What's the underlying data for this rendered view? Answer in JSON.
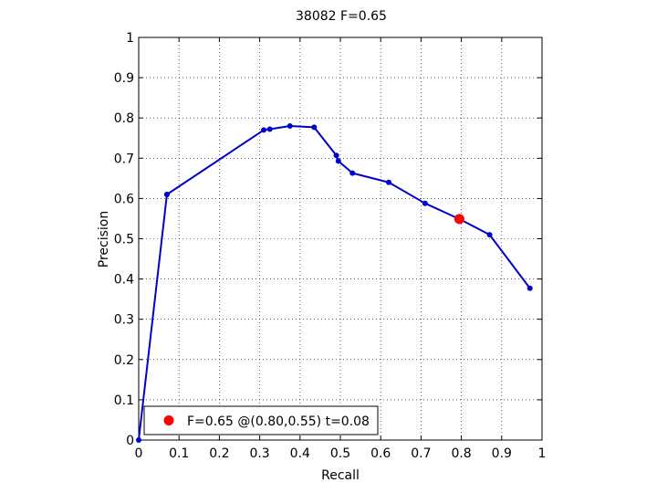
{
  "chart_data": {
    "type": "line",
    "title": "38082 F=0.65",
    "xlabel": "Recall",
    "ylabel": "Precision",
    "xlim": [
      0,
      1
    ],
    "ylim": [
      0,
      1
    ],
    "xticks": [
      "0",
      "0.1",
      "0.2",
      "0.3",
      "0.4",
      "0.5",
      "0.6",
      "0.7",
      "0.8",
      "0.9",
      "1"
    ],
    "yticks": [
      "0",
      "0.1",
      "0.2",
      "0.3",
      "0.4",
      "0.5",
      "0.6",
      "0.7",
      "0.8",
      "0.9",
      "1"
    ],
    "grid": true,
    "series": [
      {
        "color": "#0000cc",
        "x": [
          0.0,
          0.07,
          0.07,
          0.31,
          0.325,
          0.375,
          0.435,
          0.49,
          0.495,
          0.53,
          0.62,
          0.71,
          0.795,
          0.87,
          0.97
        ],
        "y": [
          0.0,
          0.61,
          0.61,
          0.77,
          0.772,
          0.78,
          0.777,
          0.707,
          0.693,
          0.663,
          0.64,
          0.588,
          0.549,
          0.51,
          0.377
        ]
      }
    ],
    "highlight": {
      "color": "#ff0000",
      "x": 0.795,
      "y": 0.549
    },
    "legend": {
      "placement": "bottom-left",
      "label": "F=0.65 @(0.80,0.55) t=0.08"
    }
  }
}
